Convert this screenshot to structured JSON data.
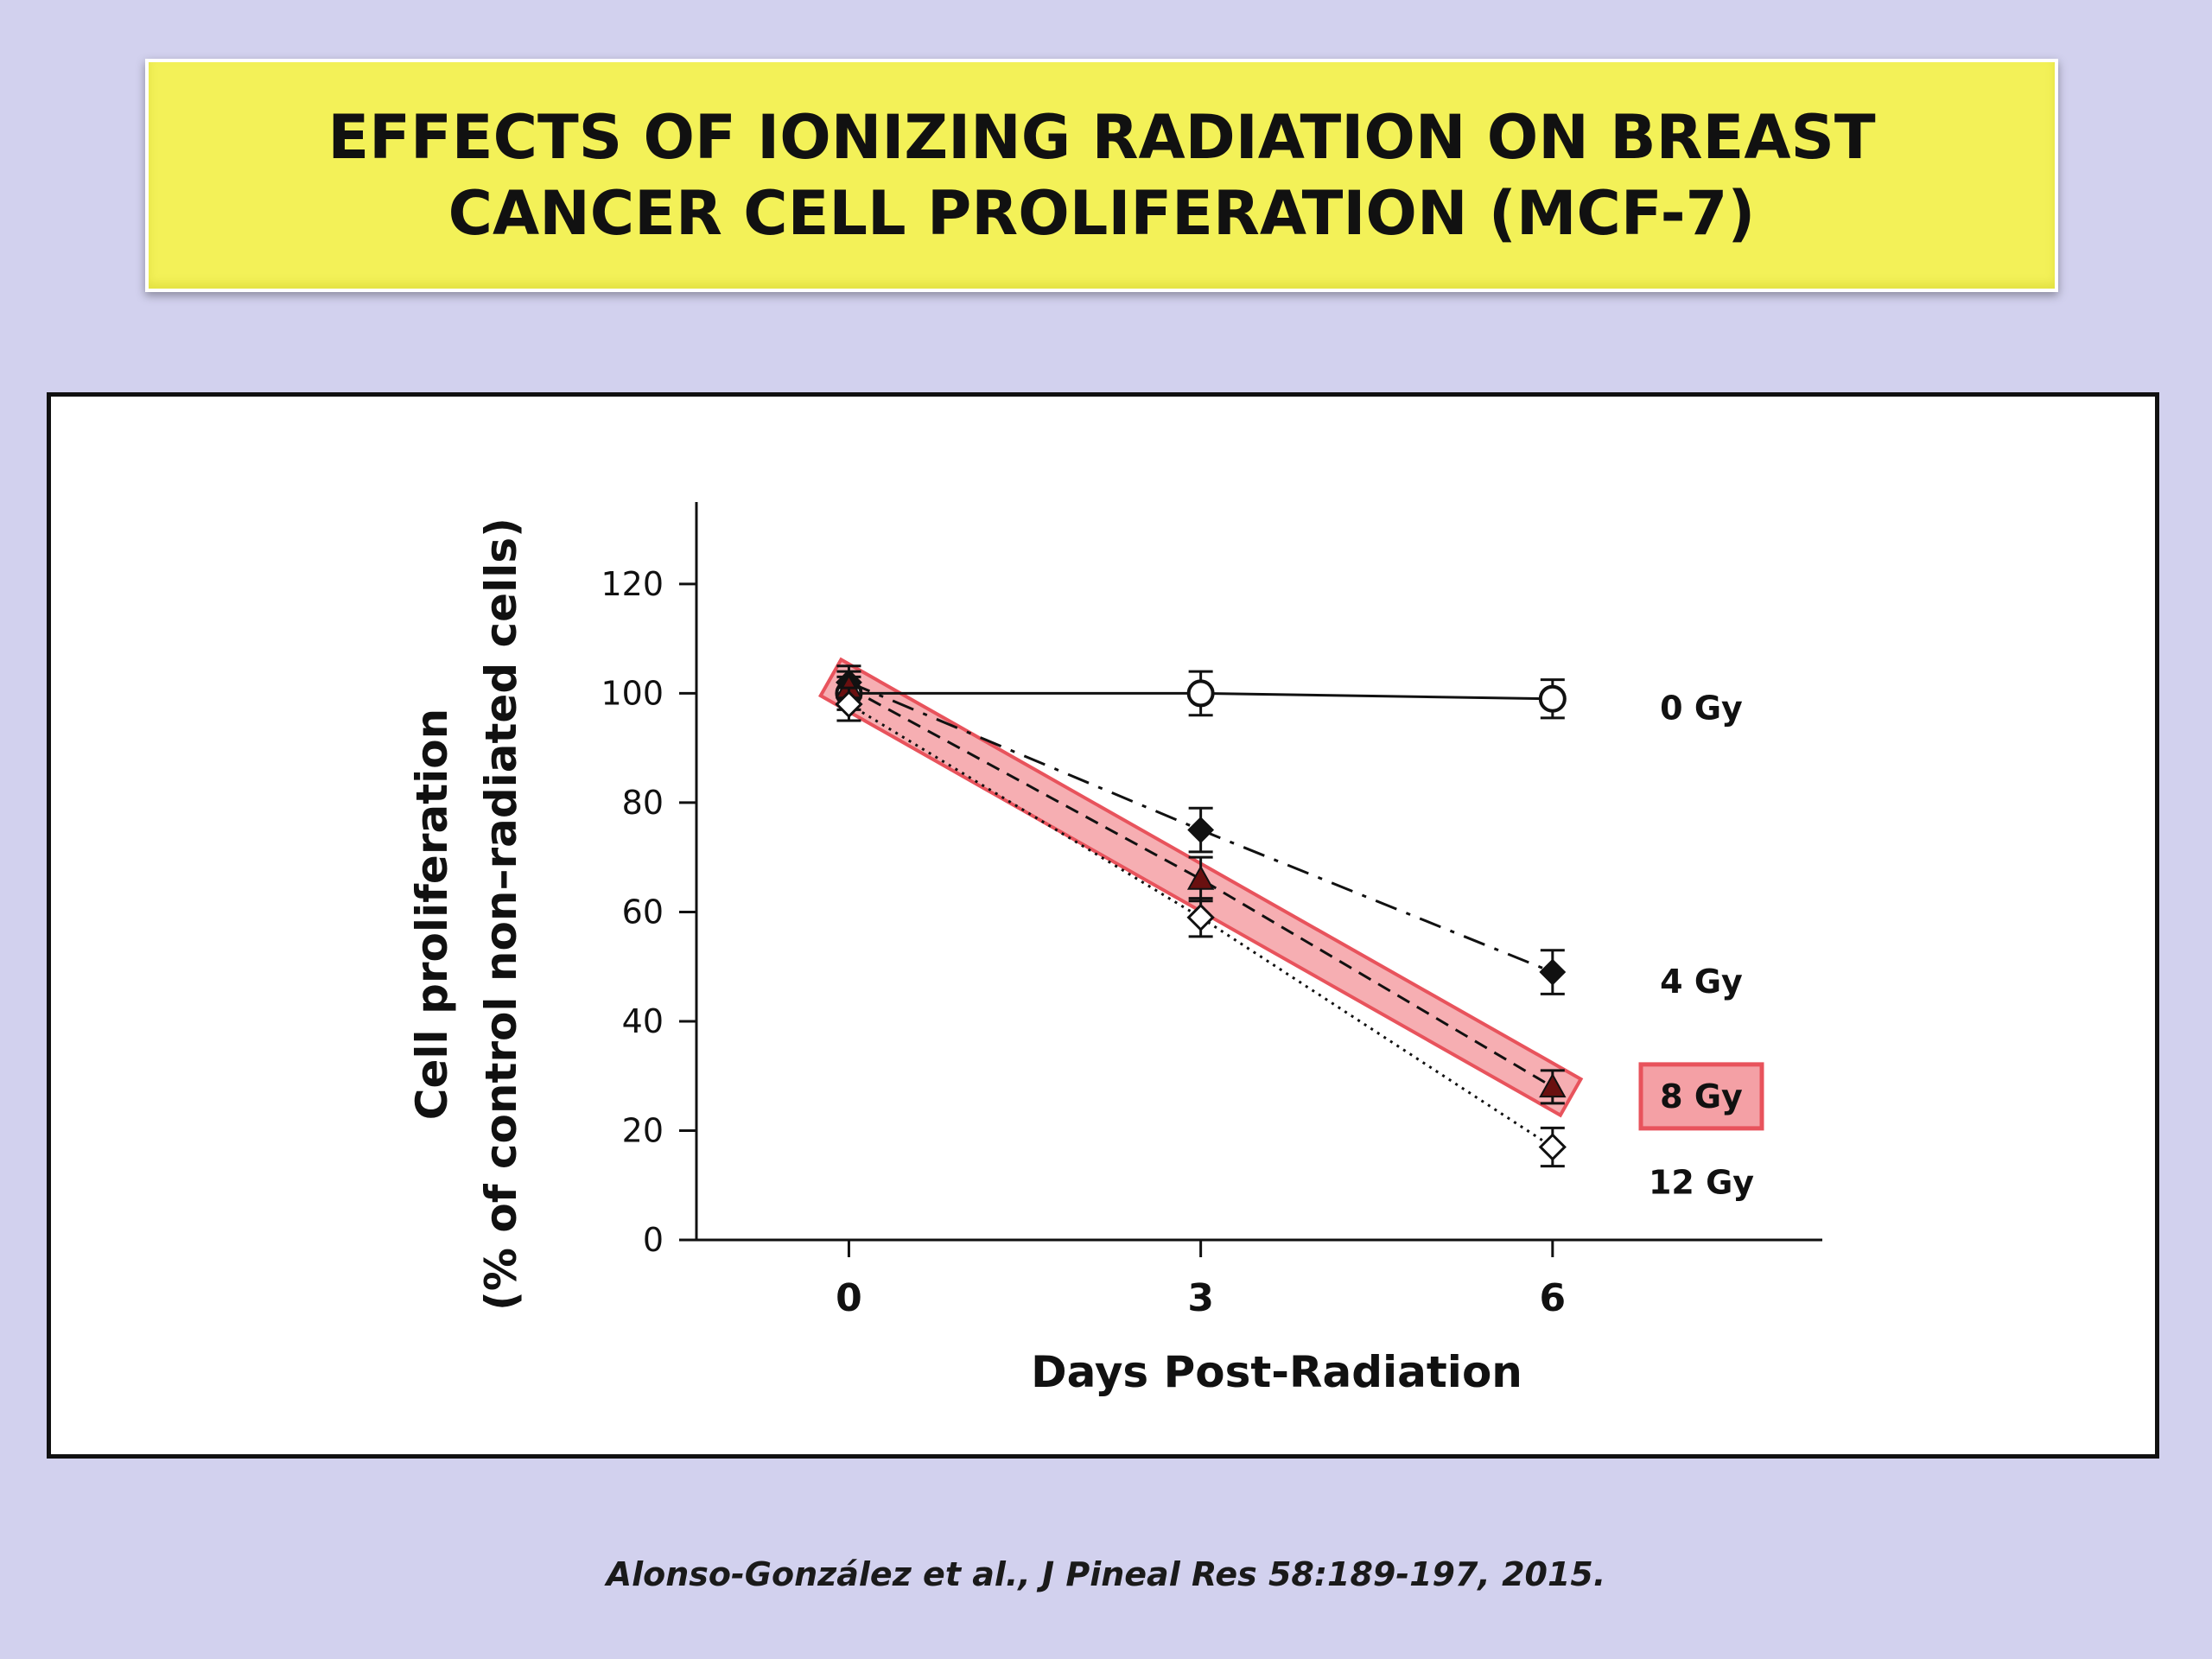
{
  "header": {
    "title_line1": "EFFECTS OF IONIZING RADIATION ON BREAST",
    "title_line2": "CANCER CELL PROLIFERATION (MCF-7)"
  },
  "citation": "Alonso-González et al., J Pineal Res 58:189-197, 2015.",
  "chart_data": {
    "type": "line",
    "title": "EFFECTS OF IONIZING RADIATION ON BREAST CANCER CELL PROLIFERATION (MCF-7)",
    "xlabel": "Days Post-Radiation",
    "ylabel_line1": "Cell proliferation",
    "ylabel_line2": "(% of control non–radiated cells)",
    "x": [
      0,
      3,
      6
    ],
    "xticks": [
      "0",
      "3",
      "6"
    ],
    "yticks": [
      "0",
      "20",
      "40",
      "60",
      "80",
      "100",
      "120"
    ],
    "ylim": [
      0,
      135
    ],
    "xlim": [
      -1.3,
      8.3
    ],
    "grid": false,
    "highlight_series": "8 Gy",
    "colors": {
      "highlight": "#e8535c",
      "highlight_fill": "#f4a0a5",
      "line": "#111111"
    },
    "series": [
      {
        "name": "0 Gy",
        "label": "0 Gy",
        "values": [
          100,
          100,
          99
        ],
        "errors": [
          3,
          4,
          3.5
        ],
        "marker": "open-circle",
        "line_style": "solid"
      },
      {
        "name": "4 Gy",
        "label": "4 Gy",
        "values": [
          102,
          75,
          49
        ],
        "errors": [
          3,
          4,
          4
        ],
        "marker": "filled-diamond",
        "line_style": "dash-dot"
      },
      {
        "name": "8 Gy",
        "label": "8 Gy",
        "values": [
          101,
          66,
          28
        ],
        "errors": [
          3,
          4,
          3
        ],
        "marker": "filled-triangle",
        "line_style": "dashed"
      },
      {
        "name": "12 Gy",
        "label": "12 Gy",
        "values": [
          98,
          59,
          17
        ],
        "errors": [
          3,
          3.5,
          3.5
        ],
        "marker": "open-diamond",
        "line_style": "dotted"
      }
    ]
  }
}
